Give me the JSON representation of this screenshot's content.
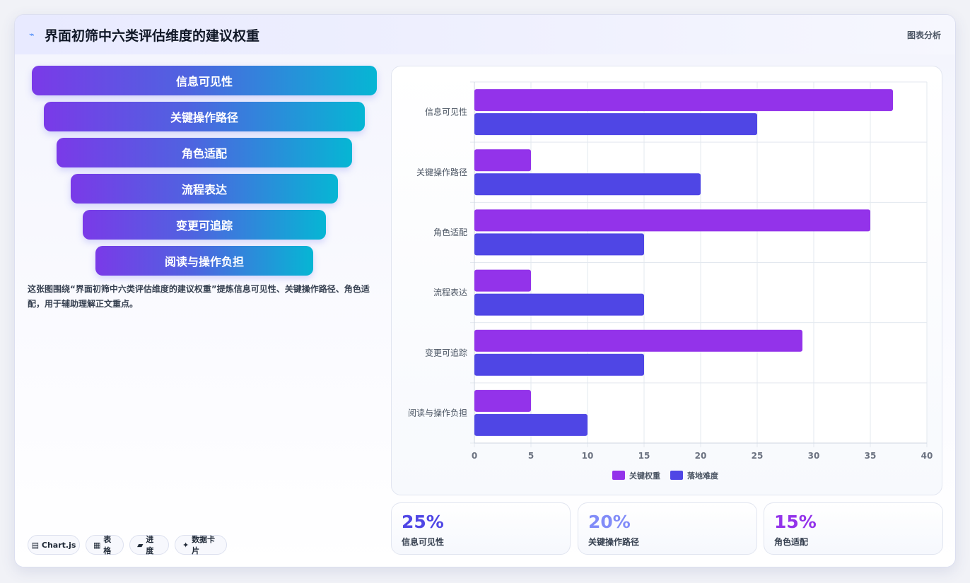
{
  "header": {
    "title": "界面初筛中六类评估维度的建议权重",
    "tag": "图表分析"
  },
  "funnel": [
    "信息可见性",
    "关键操作路径",
    "角色适配",
    "流程表达",
    "变更可追踪",
    "阅读与操作负担"
  ],
  "description": "这张图围绕“界面初筛中六类评估维度的建议权重”提炼信息可见性、关键操作路径、角色适配，用于辅助理解正文重点。",
  "chips": [
    {
      "icon": "▤",
      "label": "Chart.js"
    },
    {
      "icon": "▦",
      "label": "表格"
    },
    {
      "icon": "▰",
      "label": "进度"
    },
    {
      "icon": "✦",
      "label": "数据卡片"
    }
  ],
  "stats": [
    {
      "value": "25%",
      "label": "信息可见性",
      "color": "#4f46e5"
    },
    {
      "value": "20%",
      "label": "关键操作路径",
      "color": "#818cf8"
    },
    {
      "value": "15%",
      "label": "角色适配",
      "color": "#9333ea"
    }
  ],
  "chart_data": {
    "type": "bar",
    "orientation": "horizontal",
    "categories": [
      "信息可见性",
      "关键操作路径",
      "角色适配",
      "流程表达",
      "变更可追踪",
      "阅读与操作负担"
    ],
    "series": [
      {
        "name": "关键权重",
        "color": "#9333ea",
        "values": [
          37,
          5,
          35,
          5,
          29,
          5
        ]
      },
      {
        "name": "落地难度",
        "color": "#4f46e5",
        "values": [
          25,
          20,
          15,
          15,
          15,
          10
        ]
      }
    ],
    "xlim": [
      0,
      40
    ],
    "xticks": [
      0,
      5,
      10,
      15,
      20,
      25,
      30,
      35,
      40
    ],
    "grid": true,
    "legend": "bottom"
  }
}
